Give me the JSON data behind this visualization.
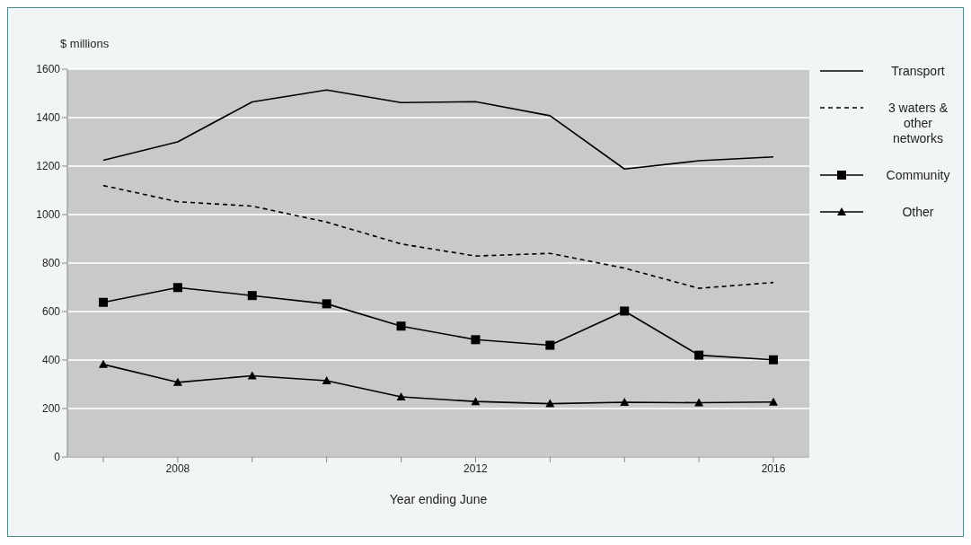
{
  "chart_data": {
    "type": "line",
    "ylabel": "$ millions",
    "xlabel": "Year ending June",
    "categories": [
      null,
      "2008",
      null,
      null,
      null,
      "2012",
      null,
      null,
      null,
      "2016"
    ],
    "ylim": [
      0,
      1600
    ],
    "yticks": [
      0,
      200,
      400,
      600,
      800,
      1000,
      1200,
      1400,
      1600
    ],
    "grid": "y",
    "legend": "right",
    "series": [
      {
        "name": "Transport",
        "color": "#000000",
        "line_style": "solid",
        "marker": "none",
        "values": [
          1224,
          1300,
          1465,
          1514,
          1462,
          1466,
          1408,
          1188,
          1222,
          1238
        ]
      },
      {
        "name": "3 waters & other networks",
        "color": "#000000",
        "line_style": "dashed",
        "marker": "none",
        "values": [
          1120,
          1053,
          1035,
          969,
          879,
          829,
          840,
          779,
          696,
          720
        ]
      },
      {
        "name": "Community",
        "color": "#000000",
        "line_style": "solid",
        "marker": "square",
        "values": [
          638,
          699,
          666,
          632,
          540,
          484,
          461,
          602,
          420,
          401
        ]
      },
      {
        "name": "Other",
        "color": "#000000",
        "line_style": "solid",
        "marker": "triangle",
        "values": [
          382,
          308,
          335,
          315,
          248,
          229,
          220,
          226,
          224,
          227
        ]
      }
    ]
  }
}
